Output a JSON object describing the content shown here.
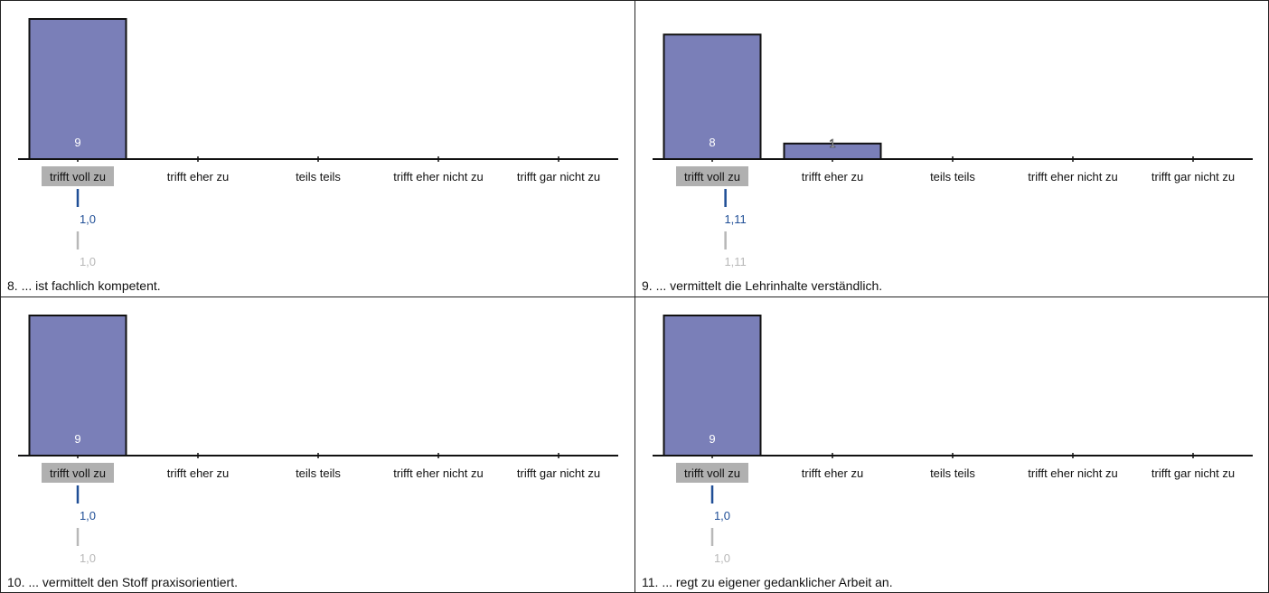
{
  "colors": {
    "bar_fill": "#7a7fb8",
    "bar_stroke": "#111111",
    "axis": "#111111",
    "highlight_bg": "#b0b0b0",
    "mean_color": "#1f4e96",
    "median_color": "#b8b8b8",
    "label_inside": "#ffffff",
    "text": "#111111",
    "border": "#222222"
  },
  "categories": [
    "trifft voll zu",
    "trifft eher zu",
    "teils teils",
    "trifft eher nicht zu",
    "trifft gar nicht zu"
  ],
  "chart_data": [
    {
      "type": "bar",
      "title": "8. ... ist fachlich kompetent.",
      "categories": [
        "trifft voll zu",
        "trifft eher zu",
        "teils teils",
        "trifft eher nicht zu",
        "trifft gar nicht zu"
      ],
      "values": [
        9,
        0,
        0,
        0,
        0
      ],
      "ylim": [
        0,
        9
      ],
      "highlight_category": 0,
      "mean_label": "1,0",
      "median_label": "1,0",
      "mean_value": 1.0,
      "median_value": 1.0
    },
    {
      "type": "bar",
      "title": "9. ... vermittelt die Lehrinhalte verständlich.",
      "categories": [
        "trifft voll zu",
        "trifft eher zu",
        "teils teils",
        "trifft eher nicht zu",
        "trifft gar nicht zu"
      ],
      "values": [
        8,
        1,
        0,
        0,
        0
      ],
      "ylim": [
        0,
        9
      ],
      "highlight_category": 0,
      "mean_label": "1,11",
      "median_label": "1,11",
      "mean_value": 1.11,
      "median_value": 1.11
    },
    {
      "type": "bar",
      "title": "10. ... vermittelt den Stoff praxisorientiert.",
      "categories": [
        "trifft voll zu",
        "trifft eher zu",
        "teils teils",
        "trifft eher nicht zu",
        "trifft gar nicht zu"
      ],
      "values": [
        9,
        0,
        0,
        0,
        0
      ],
      "ylim": [
        0,
        9
      ],
      "highlight_category": 0,
      "mean_label": "1,0",
      "median_label": "1,0",
      "mean_value": 1.0,
      "median_value": 1.0
    },
    {
      "type": "bar",
      "title": "11. ... regt zu eigener gedanklicher Arbeit an.",
      "categories": [
        "trifft voll zu",
        "trifft eher zu",
        "teils teils",
        "trifft eher nicht zu",
        "trifft gar nicht zu"
      ],
      "values": [
        9,
        0,
        0,
        0,
        0
      ],
      "ylim": [
        0,
        9
      ],
      "highlight_category": 0,
      "mean_label": "1,0",
      "median_label": "1,0",
      "mean_value": 1.0,
      "median_value": 1.0
    }
  ]
}
